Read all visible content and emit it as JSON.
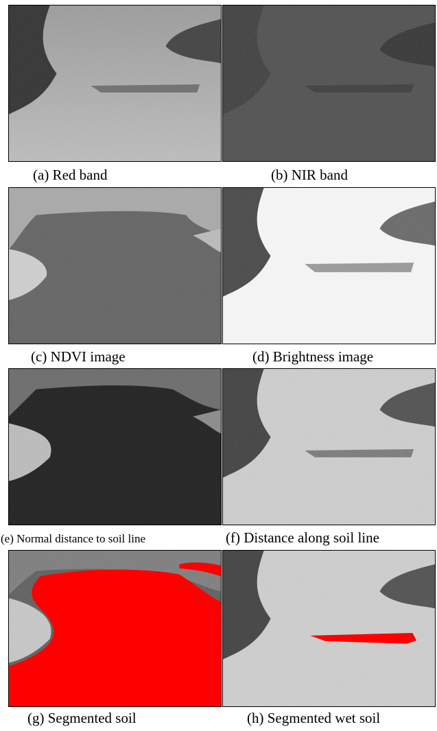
{
  "figure": {
    "panels": [
      {
        "id": "a",
        "caption": "(a) Red band"
      },
      {
        "id": "b",
        "caption": "(b) NIR band"
      },
      {
        "id": "c",
        "caption": "(c) NDVI image"
      },
      {
        "id": "d",
        "caption": "(d) Brightness image"
      },
      {
        "id": "e",
        "caption": "(e) Normal distance to soil line"
      },
      {
        "id": "f",
        "caption": "(f) Distance along soil line"
      },
      {
        "id": "g",
        "caption": "(g) Segmented soil"
      },
      {
        "id": "h",
        "caption": "(h) Segmented wet soil"
      }
    ],
    "colors": {
      "segmentation_overlay": "#ff0000"
    }
  }
}
